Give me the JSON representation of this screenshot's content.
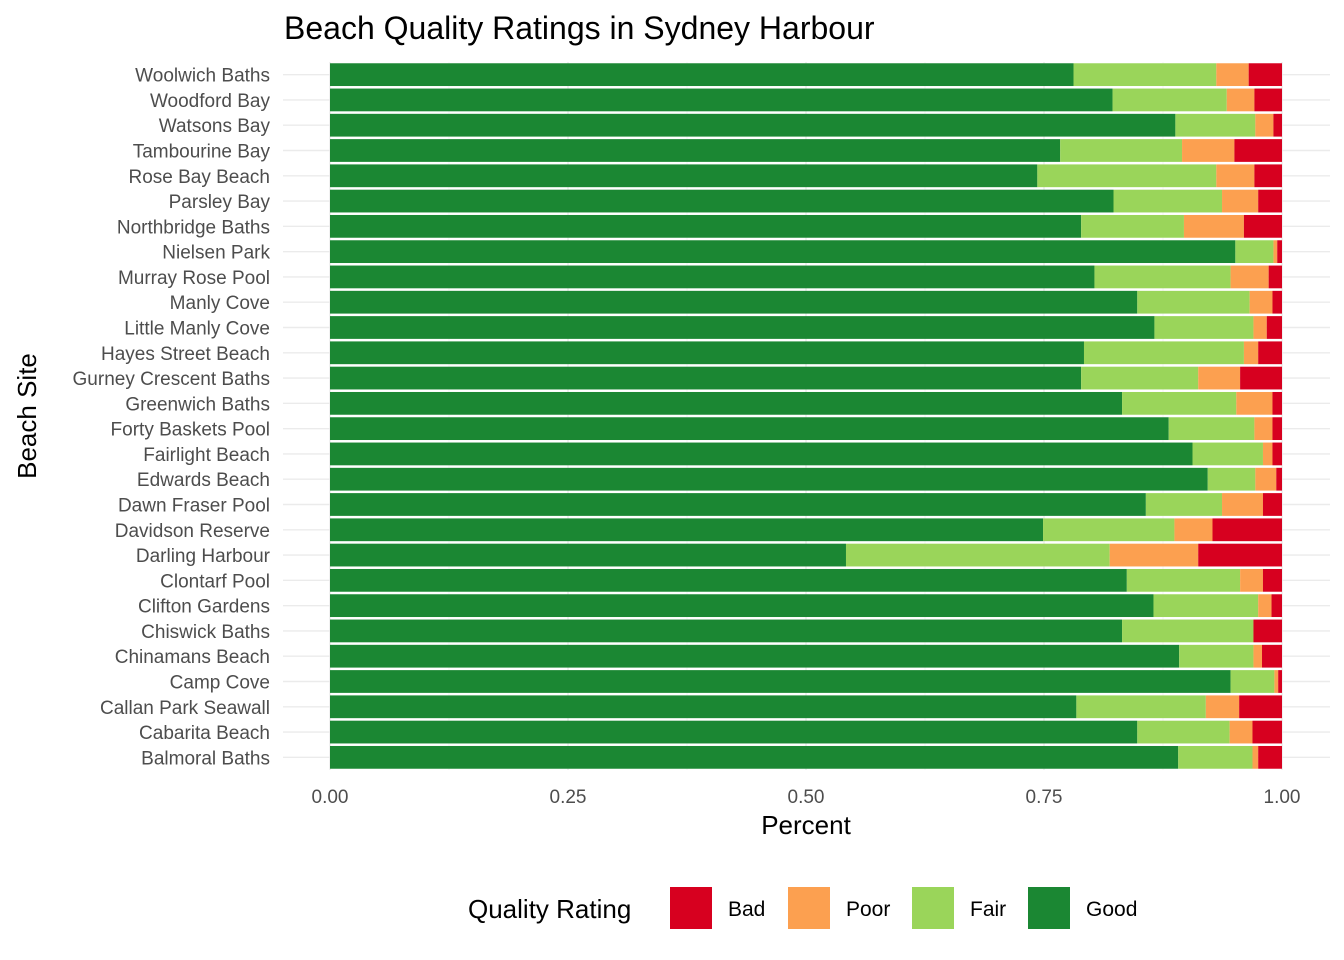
{
  "chart_data": {
    "type": "bar",
    "orientation": "horizontal",
    "stacked": true,
    "title": "Beach Quality Ratings in Sydney Harbour",
    "xlabel": "Percent",
    "ylabel": "Beach Site",
    "xlim": [
      0,
      1
    ],
    "x_ticks": [
      "0.00",
      "0.25",
      "0.50",
      "0.75",
      "1.00"
    ],
    "x_tick_values": [
      0,
      0.25,
      0.5,
      0.75,
      1.0
    ],
    "grid": true,
    "legend": {
      "title": "Quality Rating",
      "position": "bottom",
      "entries": [
        {
          "name": "Bad",
          "color": "#d7001f"
        },
        {
          "name": "Poor",
          "color": "#fca050"
        },
        {
          "name": "Fair",
          "color": "#9ad55a"
        },
        {
          "name": "Good",
          "color": "#1b8733"
        }
      ]
    },
    "categories": [
      "Woolwich Baths",
      "Woodford Bay",
      "Watsons Bay",
      "Tambourine Bay",
      "Rose Bay Beach",
      "Parsley Bay",
      "Northbridge Baths",
      "Nielsen Park",
      "Murray Rose Pool",
      "Manly Cove",
      "Little Manly Cove",
      "Hayes Street Beach",
      "Gurney Crescent Baths",
      "Greenwich Baths",
      "Forty Baskets Pool",
      "Fairlight Beach",
      "Edwards Beach",
      "Dawn Fraser Pool",
      "Davidson Reserve",
      "Darling Harbour",
      "Clontarf Pool",
      "Clifton Gardens",
      "Chiswick Baths",
      "Chinamans Beach",
      "Camp Cove",
      "Callan Park Seawall",
      "Cabarita Beach",
      "Balmoral Baths"
    ],
    "series": [
      {
        "name": "Good",
        "color": "#1b8733",
        "values": [
          0.781,
          0.822,
          0.888,
          0.767,
          0.743,
          0.823,
          0.789,
          0.951,
          0.803,
          0.848,
          0.866,
          0.792,
          0.789,
          0.832,
          0.881,
          0.906,
          0.922,
          0.857,
          0.749,
          0.542,
          0.837,
          0.865,
          0.832,
          0.892,
          0.946,
          0.784,
          0.848,
          0.891
        ]
      },
      {
        "name": "Fair",
        "color": "#9ad55a",
        "values": [
          0.15,
          0.12,
          0.084,
          0.128,
          0.188,
          0.114,
          0.108,
          0.04,
          0.143,
          0.118,
          0.104,
          0.168,
          0.123,
          0.12,
          0.09,
          0.074,
          0.05,
          0.08,
          0.138,
          0.277,
          0.119,
          0.11,
          0.138,
          0.078,
          0.046,
          0.136,
          0.097,
          0.078
        ]
      },
      {
        "name": "Poor",
        "color": "#fca050",
        "values": [
          0.034,
          0.029,
          0.019,
          0.055,
          0.04,
          0.038,
          0.063,
          0.004,
          0.04,
          0.024,
          0.014,
          0.015,
          0.044,
          0.038,
          0.019,
          0.01,
          0.022,
          0.043,
          0.04,
          0.093,
          0.024,
          0.014,
          0.0,
          0.009,
          0.004,
          0.035,
          0.024,
          0.006
        ]
      },
      {
        "name": "Bad",
        "color": "#d7001f",
        "values": [
          0.035,
          0.029,
          0.009,
          0.05,
          0.029,
          0.025,
          0.04,
          0.005,
          0.014,
          0.01,
          0.016,
          0.025,
          0.044,
          0.01,
          0.01,
          0.01,
          0.006,
          0.02,
          0.073,
          0.088,
          0.02,
          0.011,
          0.03,
          0.021,
          0.004,
          0.045,
          0.031,
          0.025
        ]
      }
    ]
  }
}
